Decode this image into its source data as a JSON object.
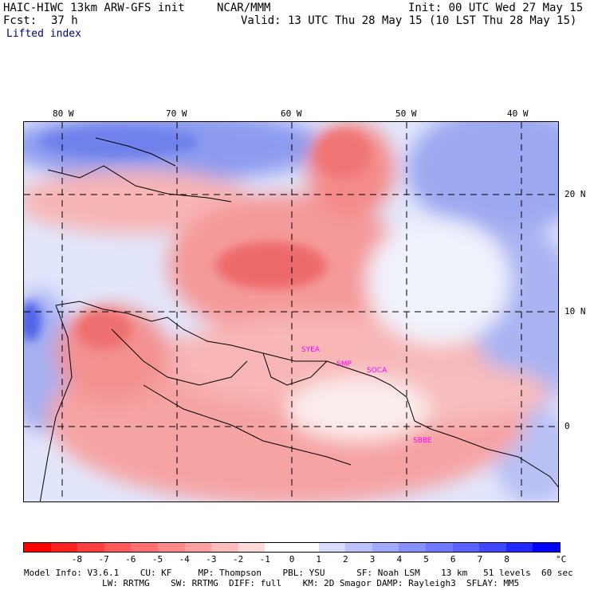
{
  "header": {
    "model": "HAIC-HIWC 13km ARW-GFS init",
    "org": "NCAR/MMM",
    "init": "Init: 00 UTC Wed 27 May 15",
    "fcst_label": "Fcst:",
    "fcst_value": "37 h",
    "valid": "Valid: 13 UTC Thu 28 May 15 (10 LST Thu 28 May 15)",
    "field": "Lifted index"
  },
  "map": {
    "longitudes": [
      "80 W",
      "70 W",
      "60 W",
      "50 W",
      "40 W"
    ],
    "latitudes": [
      "20 N",
      "10 N",
      "0"
    ],
    "stations": [
      "SMP",
      "SOCA",
      "SBBE",
      "SYEA"
    ],
    "colors": {
      "strong_negative": "#e83a3a",
      "moderate_negative": "#f48080",
      "weak_negative": "#fbc8c8",
      "neutral": "#ffffff",
      "weak_positive": "#c8d0f5",
      "positive": "#8c9bef",
      "strong_positive": "#3a4ee8",
      "station": "#ff00ff"
    }
  },
  "colorbar": {
    "ticks": [
      "-8",
      "-7",
      "-6",
      "-5",
      "-4",
      "-3",
      "-2",
      "-1",
      "0",
      "1",
      "2",
      "3",
      "4",
      "5",
      "6",
      "7",
      "8"
    ],
    "unit": "°C",
    "colors": [
      "#ff0000",
      "#ff2020",
      "#ff4040",
      "#ff5a5a",
      "#ff7070",
      "#ff8888",
      "#ffa0a0",
      "#ffbcbc",
      "#ffd8d8",
      "#ffffff",
      "#ffffff",
      "#d8dcff",
      "#bcc2ff",
      "#a0a8ff",
      "#8890ff",
      "#7078ff",
      "#5a62ff",
      "#4048ff",
      "#2028ff",
      "#0000ff"
    ]
  },
  "footer": {
    "line1": "Model Info: V3.6.1    CU: KF     MP: Thompson    PBL: YSU      SF: Noah LSM    13 km   51 levels  60 sec",
    "line2": "LW: RRTMG    SW: RRTMG  DIFF: full    KM: 2D Smagor DAMP: Rayleigh3  SFLAY: MM5"
  }
}
